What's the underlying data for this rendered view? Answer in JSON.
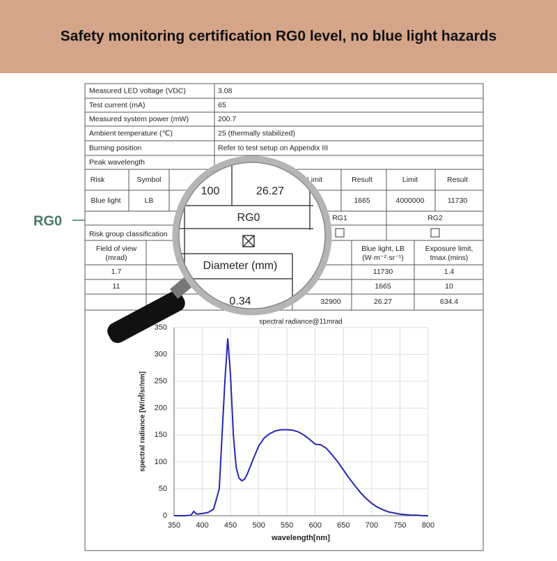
{
  "banner": {
    "title": "Safety monitoring certification RG0 level, no blue light hazards"
  },
  "callout": "RG0",
  "table": {
    "info_rows": [
      [
        "Measured LED voltage (VDC)",
        "3.08"
      ],
      [
        "Test current (mA)",
        "65"
      ],
      [
        "Measured system power (mW)",
        "200.7"
      ],
      [
        "Ambient temperature (℃)",
        "25 (thermally stabilized)"
      ],
      [
        "Burning position",
        "Refer to test setup on Appendix III"
      ],
      [
        "Peak wavelength"
      ]
    ],
    "risk_header": [
      "Risk",
      "Symbol",
      "Limit",
      "Result",
      "Limit",
      "Result"
    ],
    "risk_row": [
      "Blue light",
      "LB",
      "1665",
      "4000000",
      "11730"
    ],
    "groups": [
      "RG1",
      "RG2"
    ],
    "classification": "Risk group classification",
    "fov_header": [
      [
        "Field of view",
        "(mrad)"
      ],
      [
        "Blue light, LB",
        "(W·m⁻²·sr⁻¹)"
      ],
      [
        "Exposure limit,",
        "tmax (mins)"
      ]
    ],
    "fov_rows": [
      [
        "1.7",
        "11730",
        "1.4"
      ],
      [
        "11",
        "1665",
        "10"
      ],
      [
        "32900",
        "26.27",
        "634.4"
      ]
    ]
  },
  "magnifier": {
    "cells": [
      "100",
      "26.27",
      "RG0",
      "Diameter (mm)",
      "0.34"
    ]
  },
  "chart_data": {
    "type": "line",
    "title": "spectral radiance@11mrad",
    "x_label": "wavelength[nm]",
    "y_label": "spectral radiance [W/㎡/sr/nm]",
    "x": [
      350,
      360,
      370,
      380,
      385,
      390,
      400,
      410,
      420,
      430,
      440,
      445,
      450,
      455,
      460,
      465,
      470,
      475,
      480,
      490,
      500,
      510,
      520,
      530,
      540,
      550,
      560,
      570,
      580,
      590,
      600,
      610,
      620,
      630,
      640,
      650,
      660,
      670,
      680,
      690,
      700,
      710,
      720,
      730,
      740,
      750,
      760,
      770,
      780,
      790,
      800
    ],
    "series": [
      {
        "name": "spectral radiance",
        "color": "#2626b4",
        "values": [
          0,
          0,
          0,
          1,
          8,
          3,
          4,
          6,
          12,
          50,
          250,
          330,
          260,
          150,
          90,
          70,
          65,
          68,
          78,
          105,
          130,
          145,
          153,
          158,
          160,
          160,
          159,
          156,
          150,
          142,
          133,
          132,
          125,
          113,
          100,
          85,
          70,
          56,
          43,
          32,
          23,
          16,
          11,
          7,
          5,
          3,
          2,
          1,
          1,
          0,
          0
        ]
      }
    ],
    "xlim": [
      350,
      800
    ],
    "xticks": [
      350,
      400,
      450,
      500,
      550,
      600,
      650,
      700,
      750,
      800
    ],
    "ylim": [
      0,
      350
    ],
    "yticks": [
      0,
      50,
      100,
      150,
      200,
      250,
      300,
      350
    ],
    "grid": true
  }
}
